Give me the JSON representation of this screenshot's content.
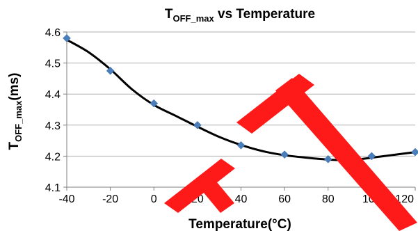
{
  "chart_data": {
    "type": "scatter",
    "title": {
      "main": "T",
      "sub": "OFF_max",
      "rest": " vs Temperature"
    },
    "xlabel": "Temperature(°C)",
    "ylabel": {
      "main": "T",
      "sub": "OFF_max",
      "rest": "(ms)"
    },
    "xlim": [
      -40,
      120
    ],
    "ylim": [
      4.1,
      4.6
    ],
    "x_ticks": [
      "-40",
      "-20",
      "0",
      "20",
      "40",
      "60",
      "80",
      "100",
      "120"
    ],
    "y_ticks": [
      "4.1",
      "4.2",
      "4.3",
      "4.4",
      "4.5",
      "4.6"
    ],
    "series": [
      {
        "x": [
          -40,
          -20,
          0,
          20,
          40,
          60,
          80,
          100,
          120
        ],
        "y": [
          4.58,
          4.475,
          4.37,
          4.3,
          4.235,
          4.205,
          4.19,
          4.2,
          4.213
        ],
        "marker": "diamond",
        "color": "#4a7ebb"
      }
    ],
    "trendline": {
      "x": [
        -40,
        -30,
        -20,
        -10,
        0,
        10,
        20,
        30,
        40,
        50,
        60,
        70,
        80,
        90,
        100,
        110,
        120
      ],
      "y": [
        4.575,
        4.535,
        4.48,
        4.415,
        4.365,
        4.33,
        4.295,
        4.262,
        4.236,
        4.216,
        4.203,
        4.195,
        4.189,
        4.187,
        4.195,
        4.204,
        4.213
      ],
      "color": "#000000"
    },
    "grid": true,
    "legend": "none"
  }
}
